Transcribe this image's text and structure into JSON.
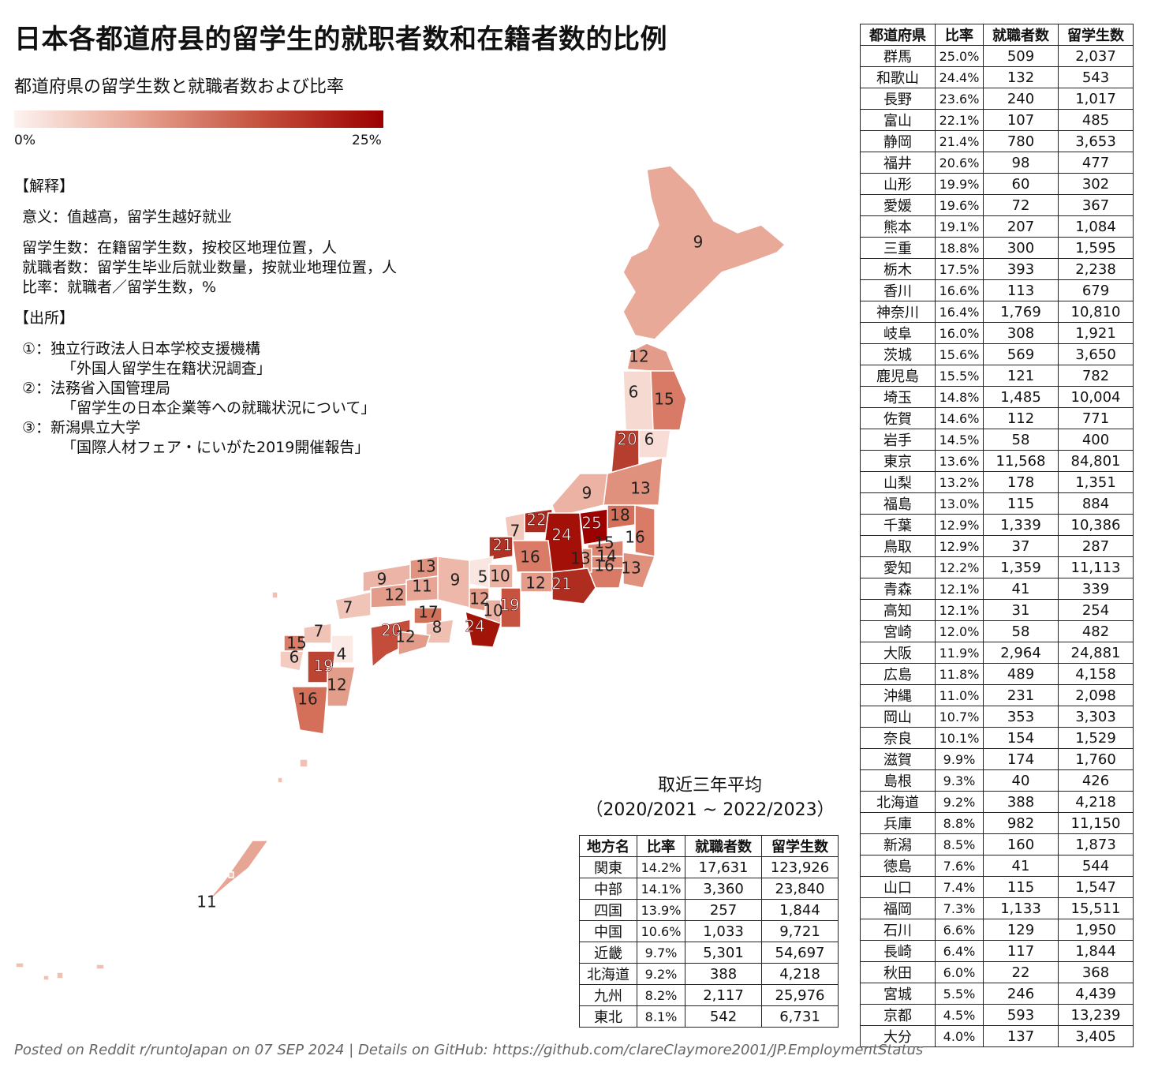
{
  "title": "日本各都道府县的留学生的就职者数和在籍者数的比例",
  "subtitle": "都道府県の留学生数と就職者数および比率",
  "legend": {
    "min_label": "0%",
    "max_label": "25%",
    "color_low": "#fdf3f0",
    "color_high": "#9c0000"
  },
  "notes": {
    "heading1": "【解释】",
    "meaning": "意义：值越高，留学生越好就业",
    "def1": "留学生数：在籍留学生数，按校区地理位置，人",
    "def2": "就職者数：留学生毕业后就业数量，按就业地理位置，人",
    "def3": "比率：就職者／留学生数，%",
    "heading2": "【出所】",
    "src1a": "①：独立行政法人日本学校支援機構",
    "src1b": "「外国人留学生在籍状況調査」",
    "src2a": "②：法務省入国管理局",
    "src2b": "「留学生の日本企業等への就職状況について」",
    "src3a": "③：新潟県立大学",
    "src3b": "「国際人材フェア・にいがた2019開催報告」"
  },
  "map_labels": [
    {
      "value": "9",
      "pref": "北海道"
    },
    {
      "value": "12",
      "pref": "青森"
    },
    {
      "value": "6",
      "pref": "秋田"
    },
    {
      "value": "15",
      "pref": "岩手"
    },
    {
      "value": "20",
      "pref": "山形"
    },
    {
      "value": "6",
      "pref": "宮城"
    },
    {
      "value": "13",
      "pref": "福島"
    },
    {
      "value": "9",
      "pref": "新潟"
    },
    {
      "value": "18",
      "pref": "栃木"
    },
    {
      "value": "16",
      "pref": "茨城"
    },
    {
      "value": "25",
      "pref": "群馬"
    },
    {
      "value": "15",
      "pref": "埼玉"
    },
    {
      "value": "14",
      "pref": "東京"
    },
    {
      "value": "13",
      "pref": "山梨"
    },
    {
      "value": "16",
      "pref": "神奈川"
    },
    {
      "value": "13",
      "pref": "千葉"
    },
    {
      "value": "22",
      "pref": "富山"
    },
    {
      "value": "24",
      "pref": "長野"
    },
    {
      "value": "7",
      "pref": "石川"
    },
    {
      "value": "21",
      "pref": "福井"
    },
    {
      "value": "16",
      "pref": "岐阜"
    },
    {
      "value": "12",
      "pref": "愛知"
    },
    {
      "value": "21",
      "pref": "静岡"
    },
    {
      "value": "5",
      "pref": "京都"
    },
    {
      "value": "10",
      "pref": "滋賀"
    },
    {
      "value": "12",
      "pref": "大阪"
    },
    {
      "value": "10",
      "pref": "奈良"
    },
    {
      "value": "19",
      "pref": "三重"
    },
    {
      "value": "24",
      "pref": "和歌山"
    },
    {
      "value": "9",
      "pref": "兵庫"
    },
    {
      "value": "13",
      "pref": "鳥取"
    },
    {
      "value": "9",
      "pref": "島根"
    },
    {
      "value": "11",
      "pref": "岡山"
    },
    {
      "value": "12",
      "pref": "広島"
    },
    {
      "value": "7",
      "pref": "山口"
    },
    {
      "value": "17",
      "pref": "香川"
    },
    {
      "value": "8",
      "pref": "徳島"
    },
    {
      "value": "20",
      "pref": "愛媛"
    },
    {
      "value": "12",
      "pref": "高知"
    },
    {
      "value": "7",
      "pref": "福岡"
    },
    {
      "value": "15",
      "pref": "佐賀"
    },
    {
      "value": "6",
      "pref": "長崎"
    },
    {
      "value": "4",
      "pref": "大分"
    },
    {
      "value": "19",
      "pref": "熊本"
    },
    {
      "value": "12",
      "pref": "宮崎"
    },
    {
      "value": "16",
      "pref": "鹿児島"
    },
    {
      "value": "11",
      "pref": "沖縄"
    }
  ],
  "avg": {
    "title1": "取近三年平均",
    "title2": "（2020/2021 ~ 2022/2023）",
    "headers": [
      "地方名",
      "比率",
      "就職者数",
      "留学生数"
    ],
    "rows": [
      [
        "関東",
        "14.2%",
        "17,631",
        "123,926"
      ],
      [
        "中部",
        "14.1%",
        "3,360",
        "23,840"
      ],
      [
        "四国",
        "13.9%",
        "257",
        "1,844"
      ],
      [
        "中国",
        "10.6%",
        "1,033",
        "9,721"
      ],
      [
        "近畿",
        "9.7%",
        "5,301",
        "54,697"
      ],
      [
        "北海道",
        "9.2%",
        "388",
        "4,218"
      ],
      [
        "九州",
        "8.2%",
        "2,117",
        "25,976"
      ],
      [
        "東北",
        "8.1%",
        "542",
        "6,731"
      ]
    ]
  },
  "prefs": {
    "headers": [
      "都道府県",
      "比率",
      "就職者数",
      "留学生数"
    ],
    "rows": [
      [
        "群馬",
        "25.0%",
        "509",
        "2,037"
      ],
      [
        "和歌山",
        "24.4%",
        "132",
        "543"
      ],
      [
        "長野",
        "23.6%",
        "240",
        "1,017"
      ],
      [
        "富山",
        "22.1%",
        "107",
        "485"
      ],
      [
        "静岡",
        "21.4%",
        "780",
        "3,653"
      ],
      [
        "福井",
        "20.6%",
        "98",
        "477"
      ],
      [
        "山形",
        "19.9%",
        "60",
        "302"
      ],
      [
        "愛媛",
        "19.6%",
        "72",
        "367"
      ],
      [
        "熊本",
        "19.1%",
        "207",
        "1,084"
      ],
      [
        "三重",
        "18.8%",
        "300",
        "1,595"
      ],
      [
        "栃木",
        "17.5%",
        "393",
        "2,238"
      ],
      [
        "香川",
        "16.6%",
        "113",
        "679"
      ],
      [
        "神奈川",
        "16.4%",
        "1,769",
        "10,810"
      ],
      [
        "岐阜",
        "16.0%",
        "308",
        "1,921"
      ],
      [
        "茨城",
        "15.6%",
        "569",
        "3,650"
      ],
      [
        "鹿児島",
        "15.5%",
        "121",
        "782"
      ],
      [
        "埼玉",
        "14.8%",
        "1,485",
        "10,004"
      ],
      [
        "佐賀",
        "14.6%",
        "112",
        "771"
      ],
      [
        "岩手",
        "14.5%",
        "58",
        "400"
      ],
      [
        "東京",
        "13.6%",
        "11,568",
        "84,801"
      ],
      [
        "山梨",
        "13.2%",
        "178",
        "1,351"
      ],
      [
        "福島",
        "13.0%",
        "115",
        "884"
      ],
      [
        "千葉",
        "12.9%",
        "1,339",
        "10,386"
      ],
      [
        "鳥取",
        "12.9%",
        "37",
        "287"
      ],
      [
        "愛知",
        "12.2%",
        "1,359",
        "11,113"
      ],
      [
        "青森",
        "12.1%",
        "41",
        "339"
      ],
      [
        "高知",
        "12.1%",
        "31",
        "254"
      ],
      [
        "宮崎",
        "12.0%",
        "58",
        "482"
      ],
      [
        "大阪",
        "11.9%",
        "2,964",
        "24,881"
      ],
      [
        "広島",
        "11.8%",
        "489",
        "4,158"
      ],
      [
        "沖縄",
        "11.0%",
        "231",
        "2,098"
      ],
      [
        "岡山",
        "10.7%",
        "353",
        "3,303"
      ],
      [
        "奈良",
        "10.1%",
        "154",
        "1,529"
      ],
      [
        "滋賀",
        "9.9%",
        "174",
        "1,760"
      ],
      [
        "島根",
        "9.3%",
        "40",
        "426"
      ],
      [
        "北海道",
        "9.2%",
        "388",
        "4,218"
      ],
      [
        "兵庫",
        "8.8%",
        "982",
        "11,150"
      ],
      [
        "新潟",
        "8.5%",
        "160",
        "1,873"
      ],
      [
        "徳島",
        "7.6%",
        "41",
        "544"
      ],
      [
        "山口",
        "7.4%",
        "115",
        "1,547"
      ],
      [
        "福岡",
        "7.3%",
        "1,133",
        "15,511"
      ],
      [
        "石川",
        "6.6%",
        "129",
        "1,950"
      ],
      [
        "長崎",
        "6.4%",
        "117",
        "1,844"
      ],
      [
        "秋田",
        "6.0%",
        "22",
        "368"
      ],
      [
        "宮城",
        "5.5%",
        "246",
        "4,439"
      ],
      [
        "京都",
        "4.5%",
        "593",
        "13,239"
      ],
      [
        "大分",
        "4.0%",
        "137",
        "3,405"
      ]
    ]
  },
  "footer": "Posted on Reddit r/runtoJapan on 07 SEP 2024 | Details on GitHub: https://github.com/clareClaymore2001/JP.EmploymentStatus"
}
